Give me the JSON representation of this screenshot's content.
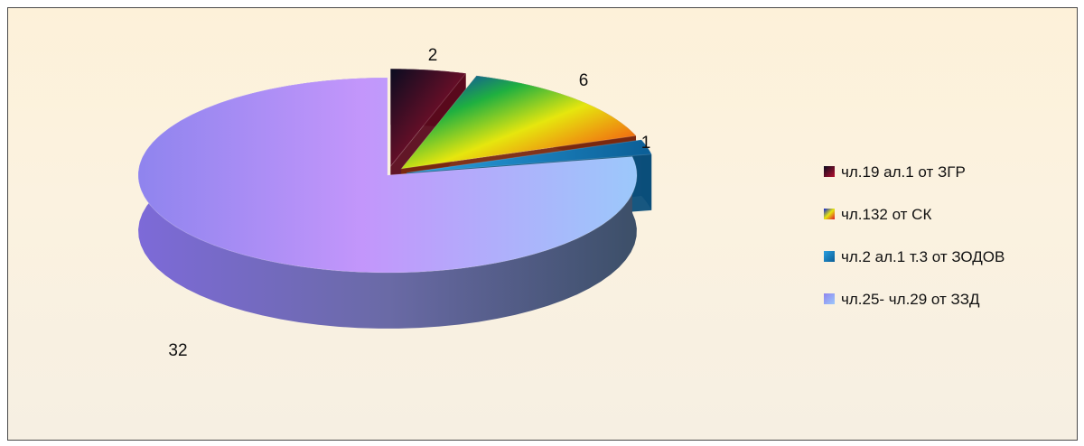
{
  "chart_data": {
    "type": "pie",
    "style": "3d-exploded",
    "legend_position": "right",
    "slices": [
      {
        "label": "чл.19 ал.1 от ЗГР",
        "value": 2,
        "value_text": "2",
        "color": "#6b0f2a"
      },
      {
        "label": "чл.132 от СК",
        "value": 6,
        "value_text": "6",
        "color": "#c8c80a"
      },
      {
        "label": "чл.2 ал.1 т.3 от ЗОДОВ",
        "value": 1,
        "value_text": "1",
        "color": "#1a8fd0"
      },
      {
        "label": "чл.25- чл.29  от ЗЗД",
        "value": 32,
        "value_text": "32",
        "color": "#a88cf0"
      }
    ]
  }
}
